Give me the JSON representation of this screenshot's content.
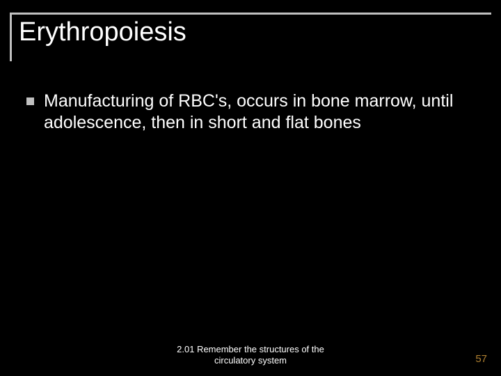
{
  "slide": {
    "background_color": "#000000",
    "border_color": "#c0c0c0",
    "text_color": "#ffffff",
    "page_number_color": "#b08030"
  },
  "title": {
    "text": "Erythropoiesis",
    "fontsize": 38,
    "color": "#ffffff"
  },
  "body": {
    "bullets": [
      {
        "text": "Manufacturing of RBC's, occurs in bone marrow, until adolescence, then in short and flat bones",
        "marker_color": "#c0c0c0",
        "fontsize": 25
      }
    ]
  },
  "footer": {
    "line1": "2.01 Remember the structures of the",
    "line2": "circulatory system",
    "fontsize": 13
  },
  "page_number": "57"
}
